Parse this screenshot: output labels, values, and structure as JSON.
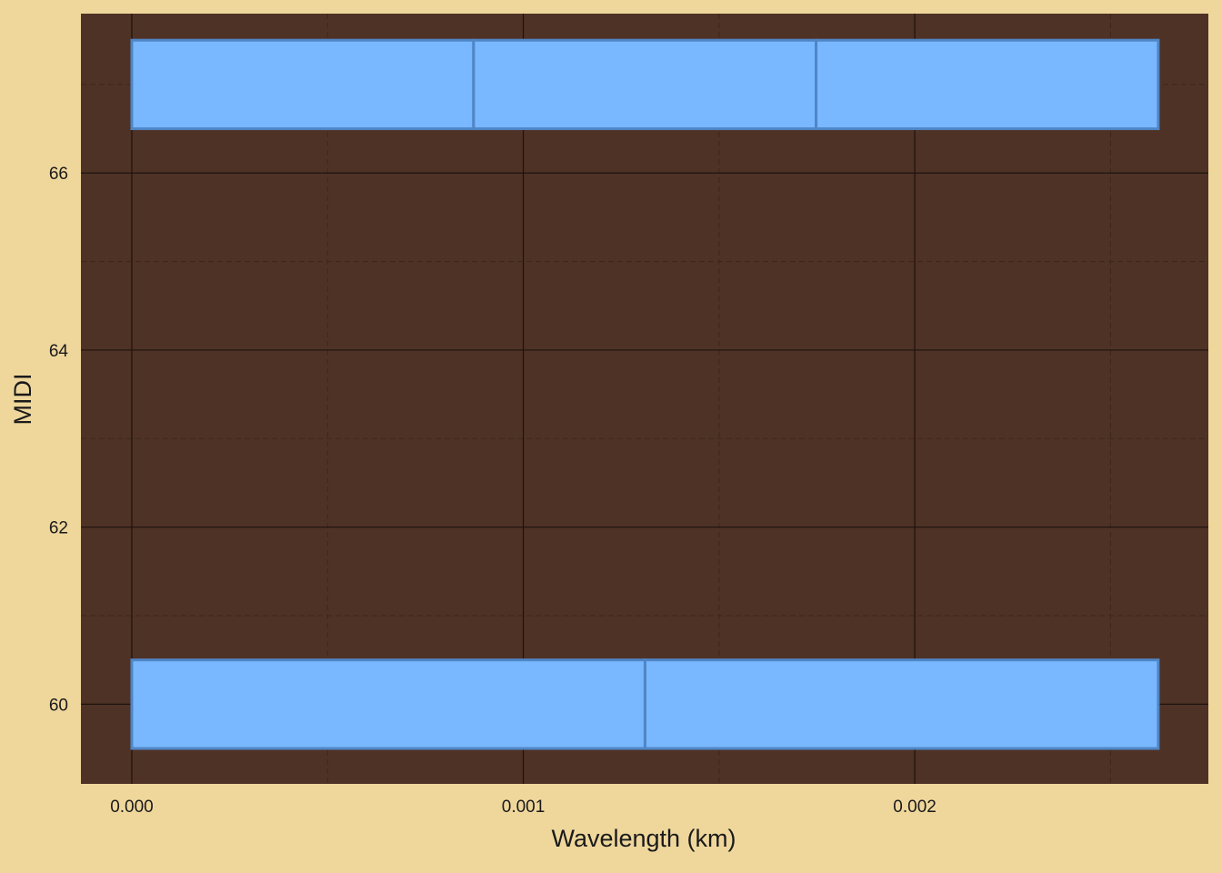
{
  "chart_data": {
    "type": "bar",
    "orientation": "horizontal",
    "stacked": true,
    "xlabel": "Wavelength (km)",
    "ylabel": "MIDI",
    "xlim": [
      -0.00013,
      0.00275
    ],
    "ylim": [
      59.1,
      67.8
    ],
    "xticks": [
      0.0,
      0.001,
      0.002
    ],
    "xtick_labels": [
      "0.000",
      "0.001",
      "0.002"
    ],
    "yticks": [
      60,
      62,
      64,
      66
    ],
    "ytick_labels": [
      "60",
      "62",
      "64",
      "66"
    ],
    "grid": true,
    "bar_height": 1,
    "stacks": [
      {
        "y": 67,
        "segments": [
          [
            0.0,
            0.000873
          ],
          [
            0.000873,
            0.001748
          ],
          [
            0.001748,
            0.002622
          ]
        ]
      },
      {
        "y": 60,
        "segments": [
          [
            0.0,
            0.001311
          ],
          [
            0.001311,
            0.002622
          ]
        ]
      }
    ],
    "colors": {
      "page_background": "#efd79c",
      "panel_background": "#4f3226",
      "bar_fill": "#79b8ff",
      "bar_stroke": "#4f86c6",
      "grid_major": "#1c120d",
      "grid_minor": "#3b261c"
    }
  }
}
